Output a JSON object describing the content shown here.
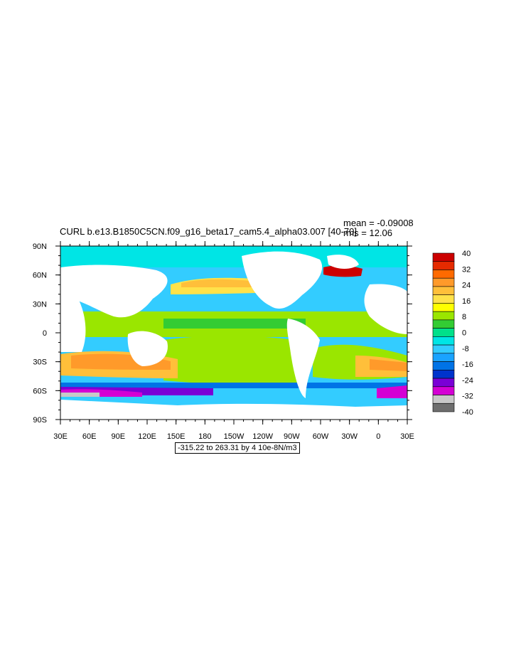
{
  "title": "CURL b.e13.B1850C5CN.f09_g16_beta17_cam5.4_alpha03.007 [40-70]",
  "stats": {
    "mean": "mean = -0.09008",
    "rms": "rms = 12.06"
  },
  "lat_labels": [
    "90N",
    "60N",
    "30N",
    "0",
    "30S",
    "60S",
    "90S"
  ],
  "lon_labels": [
    "30E",
    "60E",
    "90E",
    "120E",
    "150E",
    "180",
    "150W",
    "120W",
    "90W",
    "60W",
    "30W",
    "0",
    "30E"
  ],
  "colorbar": {
    "labels": [
      "40",
      "32",
      "24",
      "16",
      "8",
      "0",
      "-8",
      "-16",
      "-24",
      "-32",
      "-40"
    ],
    "colors_top_to_bottom": [
      "#cc0000",
      "#e52a00",
      "#ff6a00",
      "#ff9a2a",
      "#ffbf3a",
      "#ffe24a",
      "#ffff00",
      "#9ae600",
      "#33cc33",
      "#00e08a",
      "#00e5e5",
      "#33ccff",
      "#1aa3ff",
      "#0073e6",
      "#0033cc",
      "#7a00d6",
      "#d400d4",
      "#c8c8c8",
      "#6e6e6e"
    ]
  },
  "contour_info": "-315.22 to 263.31 by 4 10e-8N/m3"
}
